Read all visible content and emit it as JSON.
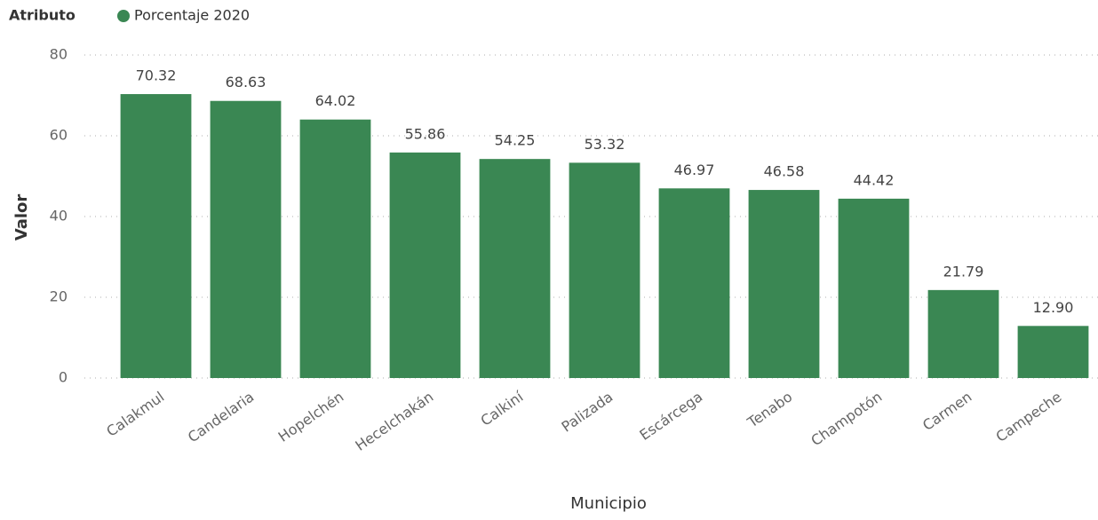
{
  "chart_data": {
    "type": "bar",
    "legend_title": "Atributo",
    "x_label": "Municipio",
    "y_label": "Valor",
    "categories": [
      "Calakmul",
      "Candelaria",
      "Hopelchén",
      "Hecelchakán",
      "Calkiní",
      "Palizada",
      "Escárcega",
      "Tenabo",
      "Champotón",
      "Carmen",
      "Campeche"
    ],
    "series": [
      {
        "name": "Porcentaje 2020",
        "color": "#3a8753",
        "values": [
          70.32,
          68.63,
          64.02,
          55.86,
          54.25,
          53.32,
          46.97,
          46.58,
          44.42,
          21.79,
          12.9
        ],
        "value_labels": [
          "70.32",
          "68.63",
          "64.02",
          "55.86",
          "54.25",
          "53.32",
          "46.97",
          "46.58",
          "44.42",
          "21.79",
          "12.90"
        ]
      }
    ],
    "ylim": [
      0,
      80
    ],
    "yticks": [
      0,
      20,
      40,
      60,
      80
    ],
    "grid": true
  }
}
